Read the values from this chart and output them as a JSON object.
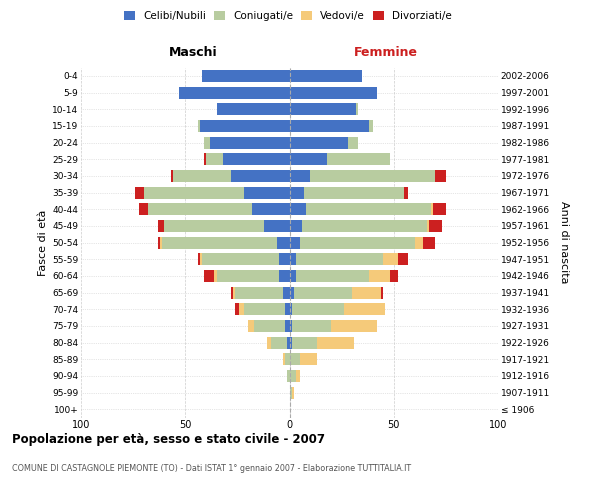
{
  "age_groups": [
    "100+",
    "95-99",
    "90-94",
    "85-89",
    "80-84",
    "75-79",
    "70-74",
    "65-69",
    "60-64",
    "55-59",
    "50-54",
    "45-49",
    "40-44",
    "35-39",
    "30-34",
    "25-29",
    "20-24",
    "15-19",
    "10-14",
    "5-9",
    "0-4"
  ],
  "birth_years": [
    "≤ 1906",
    "1907-1911",
    "1912-1916",
    "1917-1921",
    "1922-1926",
    "1927-1931",
    "1932-1936",
    "1937-1941",
    "1942-1946",
    "1947-1951",
    "1952-1956",
    "1957-1961",
    "1962-1966",
    "1967-1971",
    "1972-1976",
    "1977-1981",
    "1982-1986",
    "1987-1991",
    "1992-1996",
    "1997-2001",
    "2002-2006"
  ],
  "males_celibi": [
    0,
    0,
    0,
    0,
    1,
    2,
    2,
    3,
    5,
    5,
    6,
    12,
    18,
    22,
    28,
    32,
    38,
    43,
    35,
    53,
    42
  ],
  "males_coniugati": [
    0,
    0,
    1,
    2,
    8,
    15,
    20,
    23,
    30,
    37,
    55,
    48,
    50,
    48,
    28,
    8,
    3,
    1,
    0,
    0,
    0
  ],
  "males_vedovi": [
    0,
    0,
    0,
    1,
    2,
    3,
    2,
    1,
    1,
    1,
    1,
    0,
    0,
    0,
    0,
    0,
    0,
    0,
    0,
    0,
    0
  ],
  "males_divorziati": [
    0,
    0,
    0,
    0,
    0,
    0,
    2,
    1,
    5,
    1,
    1,
    3,
    4,
    4,
    1,
    1,
    0,
    0,
    0,
    0,
    0
  ],
  "fem_nubili": [
    0,
    0,
    0,
    0,
    1,
    1,
    1,
    2,
    3,
    3,
    5,
    6,
    8,
    7,
    10,
    18,
    28,
    38,
    32,
    42,
    35
  ],
  "fem_coniugate": [
    0,
    1,
    3,
    5,
    12,
    19,
    25,
    28,
    35,
    42,
    55,
    60,
    60,
    48,
    60,
    30,
    5,
    2,
    1,
    0,
    0
  ],
  "fem_vedove": [
    0,
    1,
    2,
    8,
    18,
    22,
    20,
    14,
    10,
    7,
    4,
    1,
    1,
    0,
    0,
    0,
    0,
    0,
    0,
    0,
    0
  ],
  "fem_divorziate": [
    0,
    0,
    0,
    0,
    0,
    0,
    0,
    1,
    4,
    5,
    6,
    6,
    6,
    2,
    5,
    0,
    0,
    0,
    0,
    0,
    0
  ],
  "color_cel": "#4472c4",
  "color_con": "#b8cca0",
  "color_ved": "#f5ca7a",
  "color_div": "#cc2020",
  "xlim": 100,
  "title": "Popolazione per età, sesso e stato civile - 2007",
  "subtitle": "COMUNE DI CASTAGNOLE PIEMONTE (TO) - Dati ISTAT 1° gennaio 2007 - Elaborazione TUTTITALIA.IT",
  "ylabel_left": "Fasce di età",
  "ylabel_right": "Anni di nascita",
  "label_maschi": "Maschi",
  "label_femmine": "Femmine",
  "legend_labels": [
    "Celibi/Nubili",
    "Coniugati/e",
    "Vedovi/e",
    "Divorziati/e"
  ]
}
